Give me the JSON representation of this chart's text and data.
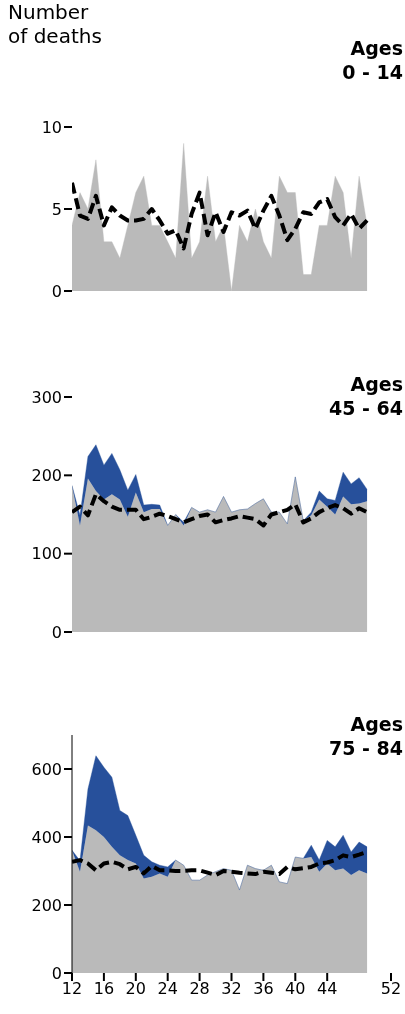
{
  "chart_data": [
    {
      "type": "area",
      "title": "Ages\n0 - 14",
      "ylabel": "Number\nof deaths",
      "x": [
        12,
        13,
        14,
        15,
        16,
        17,
        18,
        19,
        20,
        21,
        22,
        23,
        24,
        25,
        26,
        27,
        28,
        29,
        30,
        31,
        32,
        33,
        34,
        35,
        36,
        37,
        38,
        39,
        40,
        41,
        42,
        43,
        44,
        45,
        46,
        47,
        48,
        49
      ],
      "xlim": [
        12,
        52
      ],
      "ylim": [
        0,
        10
      ],
      "yticks": [
        0,
        5,
        10
      ],
      "tick_labels": "y",
      "grid": false,
      "legend": false,
      "series": [
        {
          "color": "#bababa",
          "values": [
            4,
            6,
            5,
            8,
            3,
            3,
            2,
            4,
            6,
            7,
            4,
            4,
            3,
            2,
            9,
            2,
            3,
            7,
            3,
            4,
            0,
            4,
            3,
            5,
            3,
            2,
            7,
            6,
            6,
            1,
            1,
            4,
            4,
            7,
            6,
            2,
            7,
            4
          ]
        },
        {
          "type": "line",
          "color": "#000000",
          "line_style": "dashed",
          "values": [
            6.6,
            4.6,
            4.4,
            5.8,
            4.0,
            5.1,
            4.6,
            4.3,
            4.3,
            4.4,
            5.0,
            4.3,
            3.5,
            3.7,
            2.6,
            4.7,
            6.0,
            3.4,
            4.8,
            3.6,
            4.8,
            4.6,
            4.9,
            3.8,
            4.9,
            5.8,
            4.6,
            3.1,
            3.8,
            4.8,
            4.7,
            5.4,
            5.6,
            4.5,
            4.0,
            4.7,
            3.8,
            4.3
          ]
        }
      ]
    },
    {
      "type": "area",
      "title": "Ages\n45 - 64",
      "x": [
        12,
        13,
        14,
        15,
        16,
        17,
        18,
        19,
        20,
        21,
        22,
        23,
        24,
        25,
        26,
        27,
        28,
        29,
        30,
        31,
        32,
        33,
        34,
        35,
        36,
        37,
        38,
        39,
        40,
        41,
        42,
        43,
        44,
        45,
        46,
        47,
        48,
        49
      ],
      "xlim": [
        12,
        52
      ],
      "ylim": [
        0,
        300
      ],
      "yticks": [
        0,
        100,
        200,
        300
      ],
      "tick_labels": "y",
      "grid": false,
      "legend": false,
      "stacked": true,
      "series": [
        {
          "color": "#bababa",
          "values": [
            187,
            136,
            196,
            180,
            169,
            176,
            169,
            147,
            178,
            153,
            157,
            157,
            136,
            150,
            136,
            159,
            153,
            156,
            153,
            173,
            153,
            156,
            157,
            164,
            170,
            153,
            153,
            138,
            198,
            142,
            149,
            169,
            160,
            150,
            173,
            163,
            164,
            167
          ]
        },
        {
          "color": "#27509b",
          "values": [
            0,
            13,
            28,
            59,
            44,
            52,
            38,
            34,
            23,
            9,
            6,
            5,
            0,
            0,
            4,
            0,
            0,
            0,
            0,
            0,
            0,
            0,
            0,
            0,
            0,
            0,
            0,
            0,
            0,
            0,
            4,
            11,
            10,
            18,
            31,
            26,
            33,
            15
          ]
        },
        {
          "type": "line",
          "color": "#000000",
          "line_style": "dashed",
          "values": [
            153,
            160,
            149,
            176,
            167,
            160,
            156,
            156,
            156,
            144,
            147,
            151,
            148,
            144,
            140,
            144,
            148,
            150,
            140,
            143,
            145,
            148,
            146,
            144,
            136,
            150,
            153,
            156,
            163,
            140,
            145,
            153,
            158,
            162,
            158,
            151,
            158,
            153
          ]
        }
      ]
    },
    {
      "type": "area",
      "title": "Ages\n75 - 84",
      "x": [
        12,
        13,
        14,
        15,
        16,
        17,
        18,
        19,
        20,
        21,
        22,
        23,
        24,
        25,
        26,
        27,
        28,
        29,
        30,
        31,
        32,
        33,
        34,
        35,
        36,
        37,
        38,
        39,
        40,
        41,
        42,
        43,
        44,
        45,
        46,
        47,
        48,
        49
      ],
      "xlim": [
        12,
        52
      ],
      "xticks": [
        12,
        16,
        20,
        24,
        28,
        32,
        36,
        40,
        44,
        52
      ],
      "ylim": [
        0,
        700
      ],
      "yticks": [
        0,
        200,
        400,
        600
      ],
      "grid": false,
      "legend": false,
      "stacked": true,
      "series": [
        {
          "color": "#bababa",
          "values": [
            361,
            298,
            434,
            420,
            400,
            371,
            346,
            332,
            322,
            278,
            283,
            293,
            283,
            332,
            317,
            273,
            273,
            288,
            298,
            307,
            302,
            244,
            317,
            307,
            302,
            317,
            268,
            263,
            341,
            337,
            341,
            298,
            322,
            302,
            307,
            288,
            302,
            293
          ]
        },
        {
          "color": "#27509b",
          "values": [
            0,
            32,
            107,
            219,
            205,
            205,
            132,
            131,
            83,
            68,
            44,
            24,
            29,
            0,
            0,
            0,
            0,
            0,
            0,
            0,
            0,
            0,
            0,
            0,
            0,
            0,
            0,
            0,
            0,
            0,
            35,
            34,
            68,
            69,
            98,
            68,
            83,
            78
          ]
        },
        {
          "type": "line",
          "color": "#000000",
          "line_style": "dashed",
          "values": [
            327,
            332,
            322,
            302,
            322,
            327,
            320,
            305,
            312,
            293,
            315,
            302,
            302,
            300,
            300,
            302,
            302,
            295,
            288,
            300,
            298,
            295,
            293,
            291,
            298,
            295,
            291,
            312,
            305,
            308,
            312,
            322,
            325,
            332,
            346,
            341,
            348,
            356
          ]
        }
      ]
    }
  ]
}
